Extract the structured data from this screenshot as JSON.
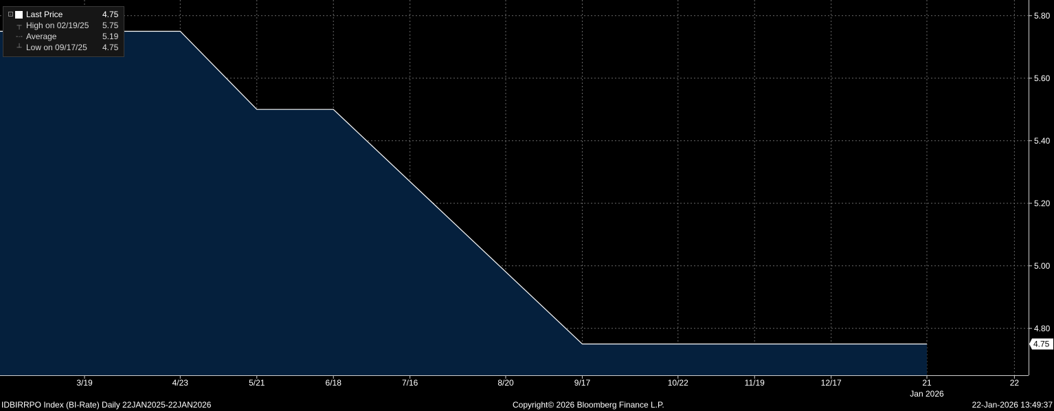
{
  "chart_data": {
    "type": "area",
    "x": [
      "2025-01-22",
      "2025-04-23",
      "2025-05-21",
      "2025-06-18",
      "2025-09-17",
      "2026-01-21"
    ],
    "series": [
      {
        "values": [
          5.75,
          5.75,
          5.5,
          5.5,
          4.75,
          4.75
        ]
      }
    ],
    "x_tick_labels": [
      "3/19",
      "4/23",
      "5/21",
      "6/18",
      "7/16",
      "8/20",
      "9/17",
      "10/22",
      "11/19",
      "12/17",
      "21",
      "22"
    ],
    "x_tick_dates": [
      "2025-03-19",
      "2025-04-23",
      "2025-05-21",
      "2025-06-18",
      "2025-07-16",
      "2025-08-20",
      "2025-09-17",
      "2025-10-22",
      "2025-11-19",
      "2025-12-17",
      "2026-01-21",
      "2026-02-22"
    ],
    "x_sublabel": "Jan 2026",
    "y_ticks": [
      "4.80",
      "5.00",
      "5.20",
      "5.40",
      "5.60",
      "5.80"
    ],
    "ylim": [
      4.65,
      5.85
    ],
    "last_value_label": "4.75",
    "grid": true,
    "y_axis_position": "right",
    "colors": {
      "background": "#000000",
      "fill": "#05203d",
      "line": "#ffffff",
      "grid": "#6a6a6a"
    }
  },
  "legend": {
    "last_price": {
      "label": "Last Price",
      "value": "4.75"
    },
    "high": {
      "label": "High on 02/19/25",
      "value": "5.75"
    },
    "average": {
      "label": "Average",
      "value": "5.19"
    },
    "low": {
      "label": "Low on 09/17/25",
      "value": "4.75"
    }
  },
  "footer": {
    "left": "IDBIRRPO Index (BI-Rate) Daily 22JAN2025-22JAN2026",
    "center": "Copyright© 2026 Bloomberg Finance L.P.",
    "right": "22-Jan-2026 13:49:37"
  }
}
